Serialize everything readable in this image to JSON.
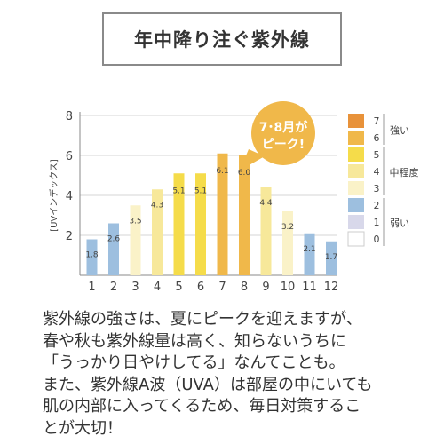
{
  "title": "年中降り注ぐ紫外線",
  "chart_data": {
    "type": "bar",
    "ylabel": "[UVインデックス]",
    "ylim": [
      0,
      8
    ],
    "yticks": [
      2,
      4,
      6,
      8
    ],
    "categories": [
      "1",
      "2",
      "3",
      "4",
      "5",
      "6",
      "7",
      "8",
      "9",
      "10",
      "11",
      "12"
    ],
    "values": [
      1.8,
      2.6,
      3.5,
      4.3,
      5.1,
      5.1,
      6.1,
      6.0,
      4.4,
      3.2,
      2.1,
      1.7
    ],
    "data_labels": [
      "1.8",
      "2.6",
      "3.5",
      "4.3",
      "5.1",
      "5.1",
      "6.1",
      "6.0",
      "4.4",
      "3.2",
      "2.1",
      "1.7"
    ],
    "grid": true,
    "callout": [
      "7･8月が",
      "ピーク!"
    ],
    "legend": {
      "levels": [
        {
          "label": "7",
          "color": "#E8923A"
        },
        {
          "label": "6",
          "color": "#F0B84A"
        },
        {
          "label": "5",
          "color": "#F5DC4A"
        },
        {
          "label": "4",
          "color": "#F7E89A"
        },
        {
          "label": "3",
          "color": "#FAF2C8"
        },
        {
          "label": "2",
          "color": "#9DBFDF"
        },
        {
          "label": "1",
          "color": "#D8D8EA"
        },
        {
          "label": "0",
          "color": "#FFFFFF"
        }
      ],
      "groups": [
        "強い",
        "中程度",
        "弱い"
      ]
    },
    "colors": {
      "low": "#9DBFDF",
      "moderate": "#FAF2C8",
      "moderate_mid": "#F7E89A",
      "high": "#F5DC4A",
      "high_orange": "#F0B84A",
      "callout": "#F0B84A"
    }
  },
  "body_lines": [
    "紫外線の強さは、夏にピークを迎えますが、",
    "春や秋も紫外線量は高く、知らないうちに",
    "「うっかり日やけしてる」なんてことも。",
    "また、紫外線A波（UVA）は部屋の中にいても",
    "肌の内部に入ってくるため、毎日対策するこ",
    "とが大切！"
  ]
}
